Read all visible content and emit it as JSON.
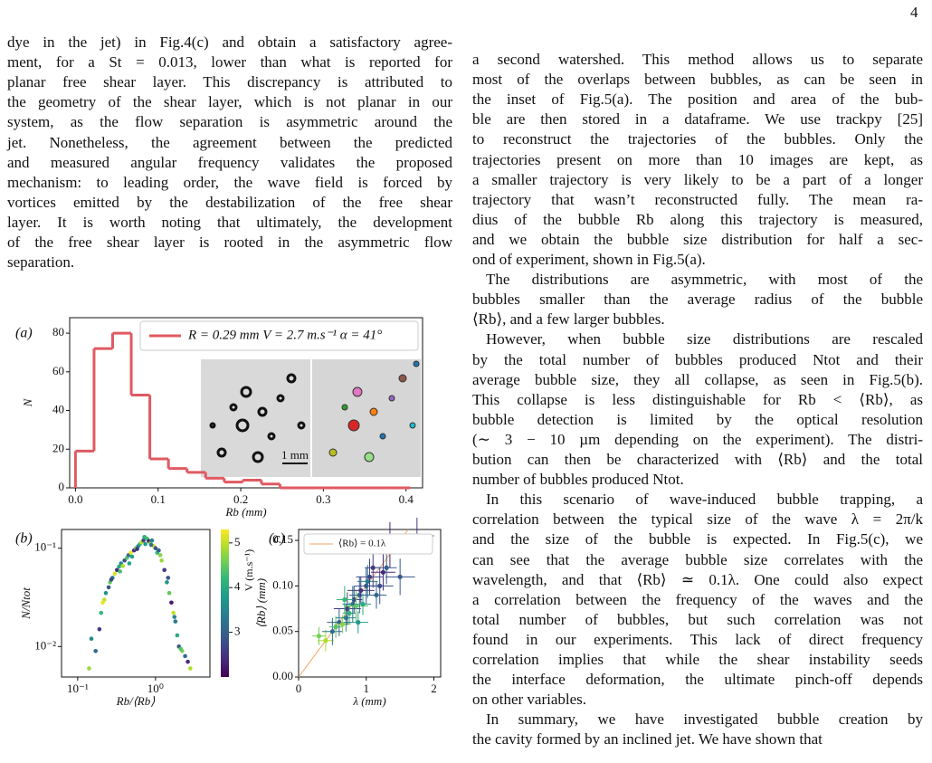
{
  "page_number": "4",
  "left_column": {
    "lines": [
      "dye in the jet) in Fig.4(c) and obtain a satisfactory agree-",
      "ment, for a St = 0.013, lower than what is reported for",
      "planar free shear layer. This discrepancy is attributed to",
      "the geometry of the shear layer, which is not planar in our",
      "system, as the flow separation is asymmetric around the",
      "jet. Nonetheless, the agreement between the predicted",
      "and measured angular frequency validates the proposed",
      "mechanism: to leading order, the wave field is forced by",
      "vortices emitted by the destabilization of the free shear",
      "layer. It is worth noting that ultimately, the development",
      "of the free shear layer is rooted in the asymmetric flow",
      "separation."
    ]
  },
  "right_column": {
    "paragraphs": [
      {
        "lines": [
          "a second watershed. This method allows us to separate",
          "most of the overlaps between bubbles, as can be seen in",
          "the inset of Fig.5(a). The position and area of the bub-",
          "ble are then stored in a dataframe. We use trackpy [25]",
          "to reconstruct the trajectories of the bubbles. Only the",
          "trajectories present on more than 10 images are kept, as",
          "a smaller trajectory is very likely to be a part of a longer",
          "trajectory that wasn’t reconstructed fully. The mean ra-",
          "dius of the bubble Rb along this trajectory is measured,",
          "and we obtain the bubble size distribution for half a sec-",
          "ond of experiment, shown in Fig.5(a)."
        ]
      },
      {
        "lines": [
          "The distributions are asymmetric, with most of the",
          "bubbles smaller than the average radius of the bubble",
          "⟨Rb⟩, and a few larger bubbles."
        ]
      },
      {
        "lines": [
          "However, when bubble size distributions are rescaled",
          "by the total number of bubbles produced Ntot and their",
          "average bubble size, they all collapse, as seen in Fig.5(b).",
          "This collapse is less distinguishable for Rb < ⟨Rb⟩, as",
          "bubble detection is limited by the optical resolution",
          "(∼ 3 − 10 µm depending on the experiment). The distri-",
          "bution can then be characterized with ⟨Rb⟩ and the total",
          "number of bubbles produced Ntot."
        ]
      },
      {
        "lines": [
          "In this scenario of wave-induced bubble trapping, a",
          "correlation between the typical size of the wave λ = 2π/k",
          "and the size of the bubble is expected. In Fig.5(c), we",
          "can see that the average bubble size correlates with the",
          "wavelength, and that ⟨Rb⟩ ≃ 0.1λ. One could also expect",
          "a correlation between the frequency of the waves and the",
          "total number of bubbles, but such correlation was not",
          "found in our experiments. This lack of direct frequency",
          "correlation implies that while the shear instability seeds",
          "the interface deformation, the ultimate pinch-off depends",
          "on other variables."
        ]
      },
      {
        "lines": [
          "In summary, we have investigated bubble creation by",
          "the cavity formed by an inclined jet. We have shown that"
        ]
      }
    ]
  },
  "figure": {
    "panel_a": {
      "type": "histogram",
      "label": "(a)",
      "color": "#e05a62",
      "bins": [
        0,
        0.0225,
        0.045,
        0.0675,
        0.09,
        0.1125,
        0.135,
        0.1575,
        0.18,
        0.2025,
        0.225,
        0.2475,
        0.27,
        0.2925,
        0.315,
        0.3375,
        0.36,
        0.3825,
        0.405
      ],
      "counts": [
        19,
        72,
        80,
        48,
        15,
        10,
        8,
        5,
        3,
        4,
        2,
        0,
        0,
        0,
        0,
        0,
        0,
        0
      ],
      "xlim": [
        -0.007,
        0.42
      ],
      "ylim": [
        0,
        88
      ],
      "xticks": [
        {
          "value": 0,
          "label": "0.0"
        },
        0.1,
        0.2,
        0.3,
        0.4
      ],
      "yticks": [
        0,
        20,
        40,
        60,
        80
      ],
      "xlabel": "Rb (mm)",
      "ylabel": "N",
      "legend": "R = 0.29 mm V = 2.7 m.s⁻¹ α = 41°",
      "inset_scale_bar": "1 mm"
    },
    "panel_b": {
      "type": "scatter",
      "label": "(b)",
      "log_x": true,
      "log_y": true,
      "colormap": "viridis",
      "x": [
        0.14,
        0.17,
        0.19,
        0.2,
        0.22,
        0.23,
        0.25,
        0.26,
        0.28,
        0.3,
        0.32,
        0.34,
        0.36,
        0.38,
        0.4,
        0.43,
        0.45,
        0.48,
        0.5,
        0.53,
        0.56,
        0.6,
        0.63,
        0.66,
        0.7,
        0.74,
        0.78,
        0.82,
        0.86,
        0.9,
        0.95,
        1.0,
        1.05,
        1.1,
        1.2,
        1.3,
        1.4,
        1.5,
        1.6,
        1.7,
        1.8,
        1.9,
        2.0,
        2.2,
        2.4,
        2.6,
        2.8,
        0.15,
        0.21,
        0.27,
        0.35,
        0.46,
        0.58,
        0.72,
        0.88,
        1.15,
        1.45,
        1.75,
        2.1
      ],
      "y": [
        0.006,
        0.009,
        0.015,
        0.022,
        0.03,
        0.035,
        0.04,
        0.045,
        0.05,
        0.055,
        0.06,
        0.065,
        0.07,
        0.066,
        0.075,
        0.08,
        0.085,
        0.09,
        0.082,
        0.095,
        0.1,
        0.105,
        0.11,
        0.115,
        0.12,
        0.11,
        0.125,
        0.118,
        0.112,
        0.12,
        0.105,
        0.1,
        0.09,
        0.095,
        0.075,
        0.06,
        0.045,
        0.035,
        0.028,
        0.022,
        0.018,
        0.013,
        0.01,
        0.009,
        0.008,
        0.007,
        0.006,
        0.012,
        0.028,
        0.048,
        0.058,
        0.07,
        0.098,
        0.13,
        0.108,
        0.085,
        0.05,
        0.02,
        0.0095
      ],
      "c": [
        4.8,
        3.1,
        2.6,
        4.2,
        5.0,
        3.7,
        2.9,
        4.5,
        3.3,
        5.1,
        2.4,
        4.0,
        3.6,
        4.9,
        2.8,
        4.4,
        3.2,
        5.2,
        3.9,
        2.5,
        4.6,
        3.4,
        4.1,
        5.0,
        2.7,
        3.8,
        4.3,
        2.3,
        4.7,
        3.5,
        5.1,
        2.9,
        4.2,
        3.0,
        4.8,
        2.6,
        3.7,
        4.5,
        2.2,
        5.0,
        3.3,
        4.0,
        2.8,
        4.6,
        3.1,
        2.4,
        4.9,
        3.6,
        5.2,
        2.7,
        4.3,
        3.9,
        2.5,
        4.1,
        3.2,
        4.7,
        2.9,
        3.5,
        4.4
      ],
      "xlim": [
        0.062,
        5
      ],
      "ylim": [
        0.0049,
        0.155
      ],
      "xticks": [
        {
          "value": 0.1,
          "label": "10⁻¹"
        },
        {
          "value": 1,
          "label": "10⁰"
        }
      ],
      "yticks": [
        {
          "value": 0.01,
          "label": "10⁻²"
        },
        {
          "value": 0.1,
          "label": "10⁻¹"
        }
      ],
      "xlabel": "Rb/⟨Rb⟩",
      "ylabel": "N/Ntot",
      "clim": [
        2.0,
        5.3
      ],
      "cticks": [
        3,
        4,
        5
      ],
      "clabel": "V (m.s⁻¹)"
    },
    "panel_c": {
      "type": "errorbar",
      "label": "(c)",
      "colormap": "viridis",
      "x": [
        0.3,
        0.4,
        0.5,
        0.55,
        0.6,
        0.65,
        0.7,
        0.72,
        0.75,
        0.8,
        0.82,
        0.85,
        0.9,
        0.92,
        0.95,
        1.0,
        1.02,
        1.05,
        1.1,
        1.15,
        1.2,
        1.25,
        1.3,
        1.35,
        1.5,
        1.75,
        0.68,
        0.88
      ],
      "y": [
        0.045,
        0.04,
        0.05,
        0.055,
        0.06,
        0.058,
        0.065,
        0.075,
        0.07,
        0.08,
        0.085,
        0.078,
        0.09,
        0.095,
        0.08,
        0.1,
        0.105,
        0.11,
        0.12,
        0.09,
        0.1,
        0.115,
        0.12,
        0.145,
        0.11,
        0.155,
        0.085,
        0.06
      ],
      "xerr": [
        0.1,
        0.12,
        0.15,
        0.1,
        0.18,
        0.12,
        0.15,
        0.2,
        0.1,
        0.15,
        0.12,
        0.18,
        0.15,
        0.2,
        0.12,
        0.18,
        0.15,
        0.2,
        0.12,
        0.15,
        0.2,
        0.18,
        0.15,
        0.2,
        0.22,
        0.25,
        0.12,
        0.15
      ],
      "yerr": [
        0.01,
        0.012,
        0.015,
        0.012,
        0.015,
        0.01,
        0.015,
        0.018,
        0.012,
        0.02,
        0.015,
        0.018,
        0.02,
        0.015,
        0.012,
        0.02,
        0.018,
        0.02,
        0.022,
        0.015,
        0.02,
        0.02,
        0.018,
        0.025,
        0.02,
        0.02,
        0.015,
        0.012
      ],
      "c": [
        4.6,
        4.9,
        3.2,
        4.4,
        3.0,
        4.7,
        3.5,
        2.6,
        4.1,
        3.3,
        2.8,
        4.5,
        3.0,
        2.5,
        4.0,
        2.9,
        3.4,
        2.7,
        2.6,
        3.1,
        2.8,
        2.4,
        3.0,
        2.3,
        2.9,
        2.6,
        4.2,
        3.8
      ],
      "xlim": [
        0,
        2.1
      ],
      "ylim": [
        0,
        0.162
      ],
      "xticks": [
        0,
        1,
        2
      ],
      "yticks": [
        {
          "value": 0,
          "label": "0.00"
        },
        {
          "value": 0.05,
          "label": "0.05"
        },
        {
          "value": 0.1,
          "label": "0.10"
        },
        {
          "value": 0.15,
          "label": "0.15"
        }
      ],
      "xlabel": "λ (mm)",
      "ylabel": "⟨Rb⟩ (mm)",
      "fit": {
        "label": "⟨Rb⟩ = 0.1λ",
        "slope": 0.1,
        "color": "#f4a460"
      }
    }
  }
}
